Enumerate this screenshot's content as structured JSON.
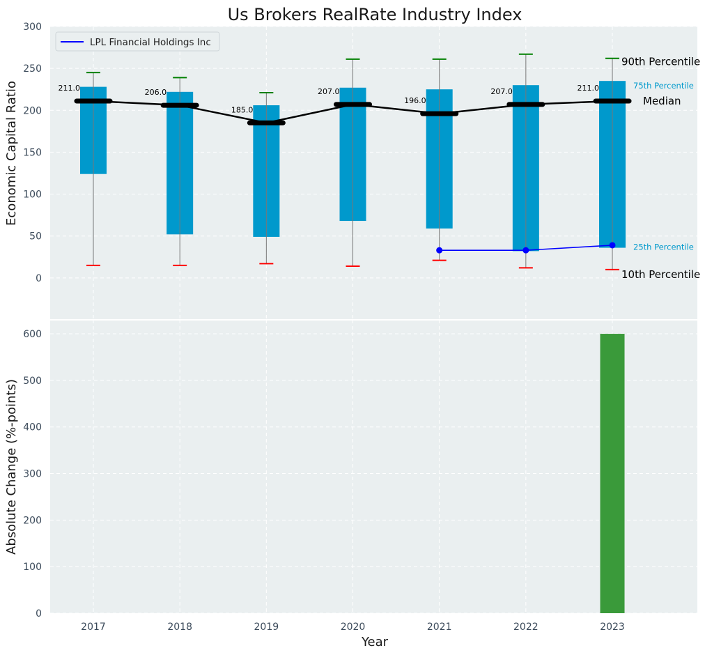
{
  "title": "Us Brokers RealRate Industry Index",
  "chart_data": [
    {
      "type": "box",
      "ylabel": "Economic Capital Ratio",
      "ylim": [
        -50,
        300
      ],
      "yticks": [
        0,
        50,
        100,
        150,
        200,
        250,
        300
      ],
      "categories": [
        "2017",
        "2018",
        "2019",
        "2020",
        "2021",
        "2022",
        "2023"
      ],
      "p10": [
        15,
        15,
        17,
        14,
        21,
        12,
        10
      ],
      "p25": [
        124,
        52,
        49,
        68,
        59,
        32,
        36
      ],
      "median": [
        211,
        206,
        185,
        207,
        196,
        207,
        211
      ],
      "median_labels": [
        "211.0",
        "206.0",
        "185.0",
        "207.0",
        "196.0",
        "207.0",
        "211.0"
      ],
      "p75": [
        228,
        222,
        206,
        227,
        225,
        230,
        235
      ],
      "p90": [
        245,
        239,
        221,
        261,
        261,
        267,
        262
      ],
      "company_series": {
        "name": "LPL Financial Holdings Inc",
        "x": [
          "2021",
          "2022",
          "2023"
        ],
        "values": [
          33,
          33,
          39
        ],
        "color": "#0000ff"
      },
      "annotations": {
        "p90": "90th Percentile",
        "p75": "75th Percentile",
        "median": "Median",
        "p25": "25th Percentile",
        "p10": "10th Percentile"
      },
      "colors": {
        "box": "#0099cc",
        "median": "#000000",
        "p90_cap": "#008000",
        "p10_cap": "#ff0000",
        "background": "#eaeff0"
      },
      "legend": "top-left",
      "grid": true
    },
    {
      "type": "bar",
      "xlabel": "Year",
      "ylabel": "Absolute Change (%-points)",
      "ylim": [
        0,
        630
      ],
      "yticks": [
        0,
        100,
        200,
        300,
        400,
        500,
        600
      ],
      "categories": [
        "2017",
        "2018",
        "2019",
        "2020",
        "2021",
        "2022",
        "2023"
      ],
      "values": [
        0,
        0,
        0,
        0,
        0,
        0,
        600
      ],
      "color": "#3a9a3a",
      "grid": true
    }
  ]
}
